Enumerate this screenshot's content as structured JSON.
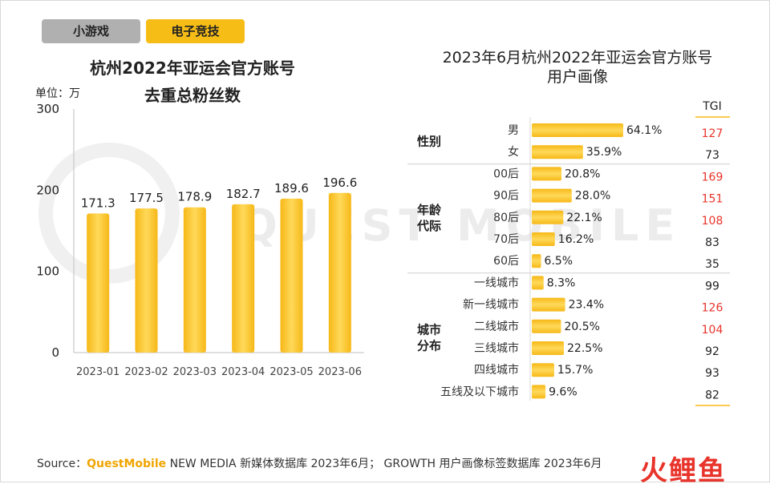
{
  "tabs": {
    "small_games": "小游戏",
    "esports": "电子竞技"
  },
  "source": {
    "prefix": "Source：",
    "brand": "QuestMobile",
    "text": " NEW MEDIA 新媒体数据库 2023年6月； GROWTH 用户画像标签数据库 2023年6月"
  },
  "watermark": "QUEST MOBILE",
  "logo_text": "火鲤鱼",
  "colors": {
    "bar": "#f6b817",
    "bar_light": "#ffd95a",
    "tgi_high": "#e8342b",
    "tgi_normal": "#222222",
    "tab_active": "#f6bd16",
    "tab_inactive": "#b0b0b0"
  },
  "chart_data": [
    {
      "type": "bar",
      "title_line1": "杭州2022年亚运会官方账号",
      "title_line2": "去重总粉丝数",
      "unit_label": "单位：万",
      "categories": [
        "2023-01",
        "2023-02",
        "2023-03",
        "2023-04",
        "2023-05",
        "2023-06"
      ],
      "values": [
        171.3,
        177.5,
        178.9,
        182.7,
        189.6,
        196.6
      ],
      "value_labels": [
        "171.3",
        "177.5",
        "178.9",
        "182.7",
        "189.6",
        "196.6"
      ],
      "yticks": [
        "0",
        "100",
        "200",
        "300"
      ],
      "ylim": [
        0,
        300
      ]
    },
    {
      "type": "bar",
      "orientation": "horizontal",
      "title_line1": "2023年6月杭州2022年亚运会官方账号",
      "title_line2": "用户画像",
      "tgi_header": "TGI",
      "groups": [
        {
          "label": "性别",
          "items": [
            {
              "label": "男",
              "value": 64.1,
              "value_label": "64.1%",
              "tgi": 127,
              "tgi_high": true
            },
            {
              "label": "女",
              "value": 35.9,
              "value_label": "35.9%",
              "tgi": 73,
              "tgi_high": false
            }
          ]
        },
        {
          "label": "年龄\n代际",
          "items": [
            {
              "label": "00后",
              "value": 20.8,
              "value_label": "20.8%",
              "tgi": 169,
              "tgi_high": true
            },
            {
              "label": "90后",
              "value": 28.0,
              "value_label": "28.0%",
              "tgi": 151,
              "tgi_high": true
            },
            {
              "label": "80后",
              "value": 22.1,
              "value_label": "22.1%",
              "tgi": 108,
              "tgi_high": true
            },
            {
              "label": "70后",
              "value": 16.2,
              "value_label": "16.2%",
              "tgi": 83,
              "tgi_high": false
            },
            {
              "label": "60后",
              "value": 6.5,
              "value_label": "6.5%",
              "tgi": 35,
              "tgi_high": false
            }
          ]
        },
        {
          "label": "城市\n分布",
          "items": [
            {
              "label": "一线城市",
              "value": 8.3,
              "value_label": "8.3%",
              "tgi": 99,
              "tgi_high": false
            },
            {
              "label": "新一线城市",
              "value": 23.4,
              "value_label": "23.4%",
              "tgi": 126,
              "tgi_high": true
            },
            {
              "label": "二线城市",
              "value": 20.5,
              "value_label": "20.5%",
              "tgi": 104,
              "tgi_high": true
            },
            {
              "label": "三线城市",
              "value": 22.5,
              "value_label": "22.5%",
              "tgi": 92,
              "tgi_high": false
            },
            {
              "label": "四线城市",
              "value": 15.7,
              "value_label": "15.7%",
              "tgi": 93,
              "tgi_high": false
            },
            {
              "label": "五线及以下城市",
              "value": 9.6,
              "value_label": "9.6%",
              "tgi": 82,
              "tgi_high": false
            }
          ]
        }
      ]
    }
  ]
}
